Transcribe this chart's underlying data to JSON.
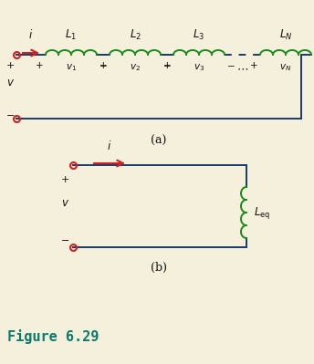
{
  "bg_color": "#f5f0dc",
  "wire_color": "#1a3a6b",
  "inductor_color": "#1a8a1a",
  "terminal_color": "#cc2222",
  "arrow_color": "#cc2222",
  "text_color": "#111111",
  "figure_label_color": "#0a7a6a",
  "title": "Figure 6.29",
  "subfig_a_label": "(a)",
  "subfig_b_label": "(b)"
}
